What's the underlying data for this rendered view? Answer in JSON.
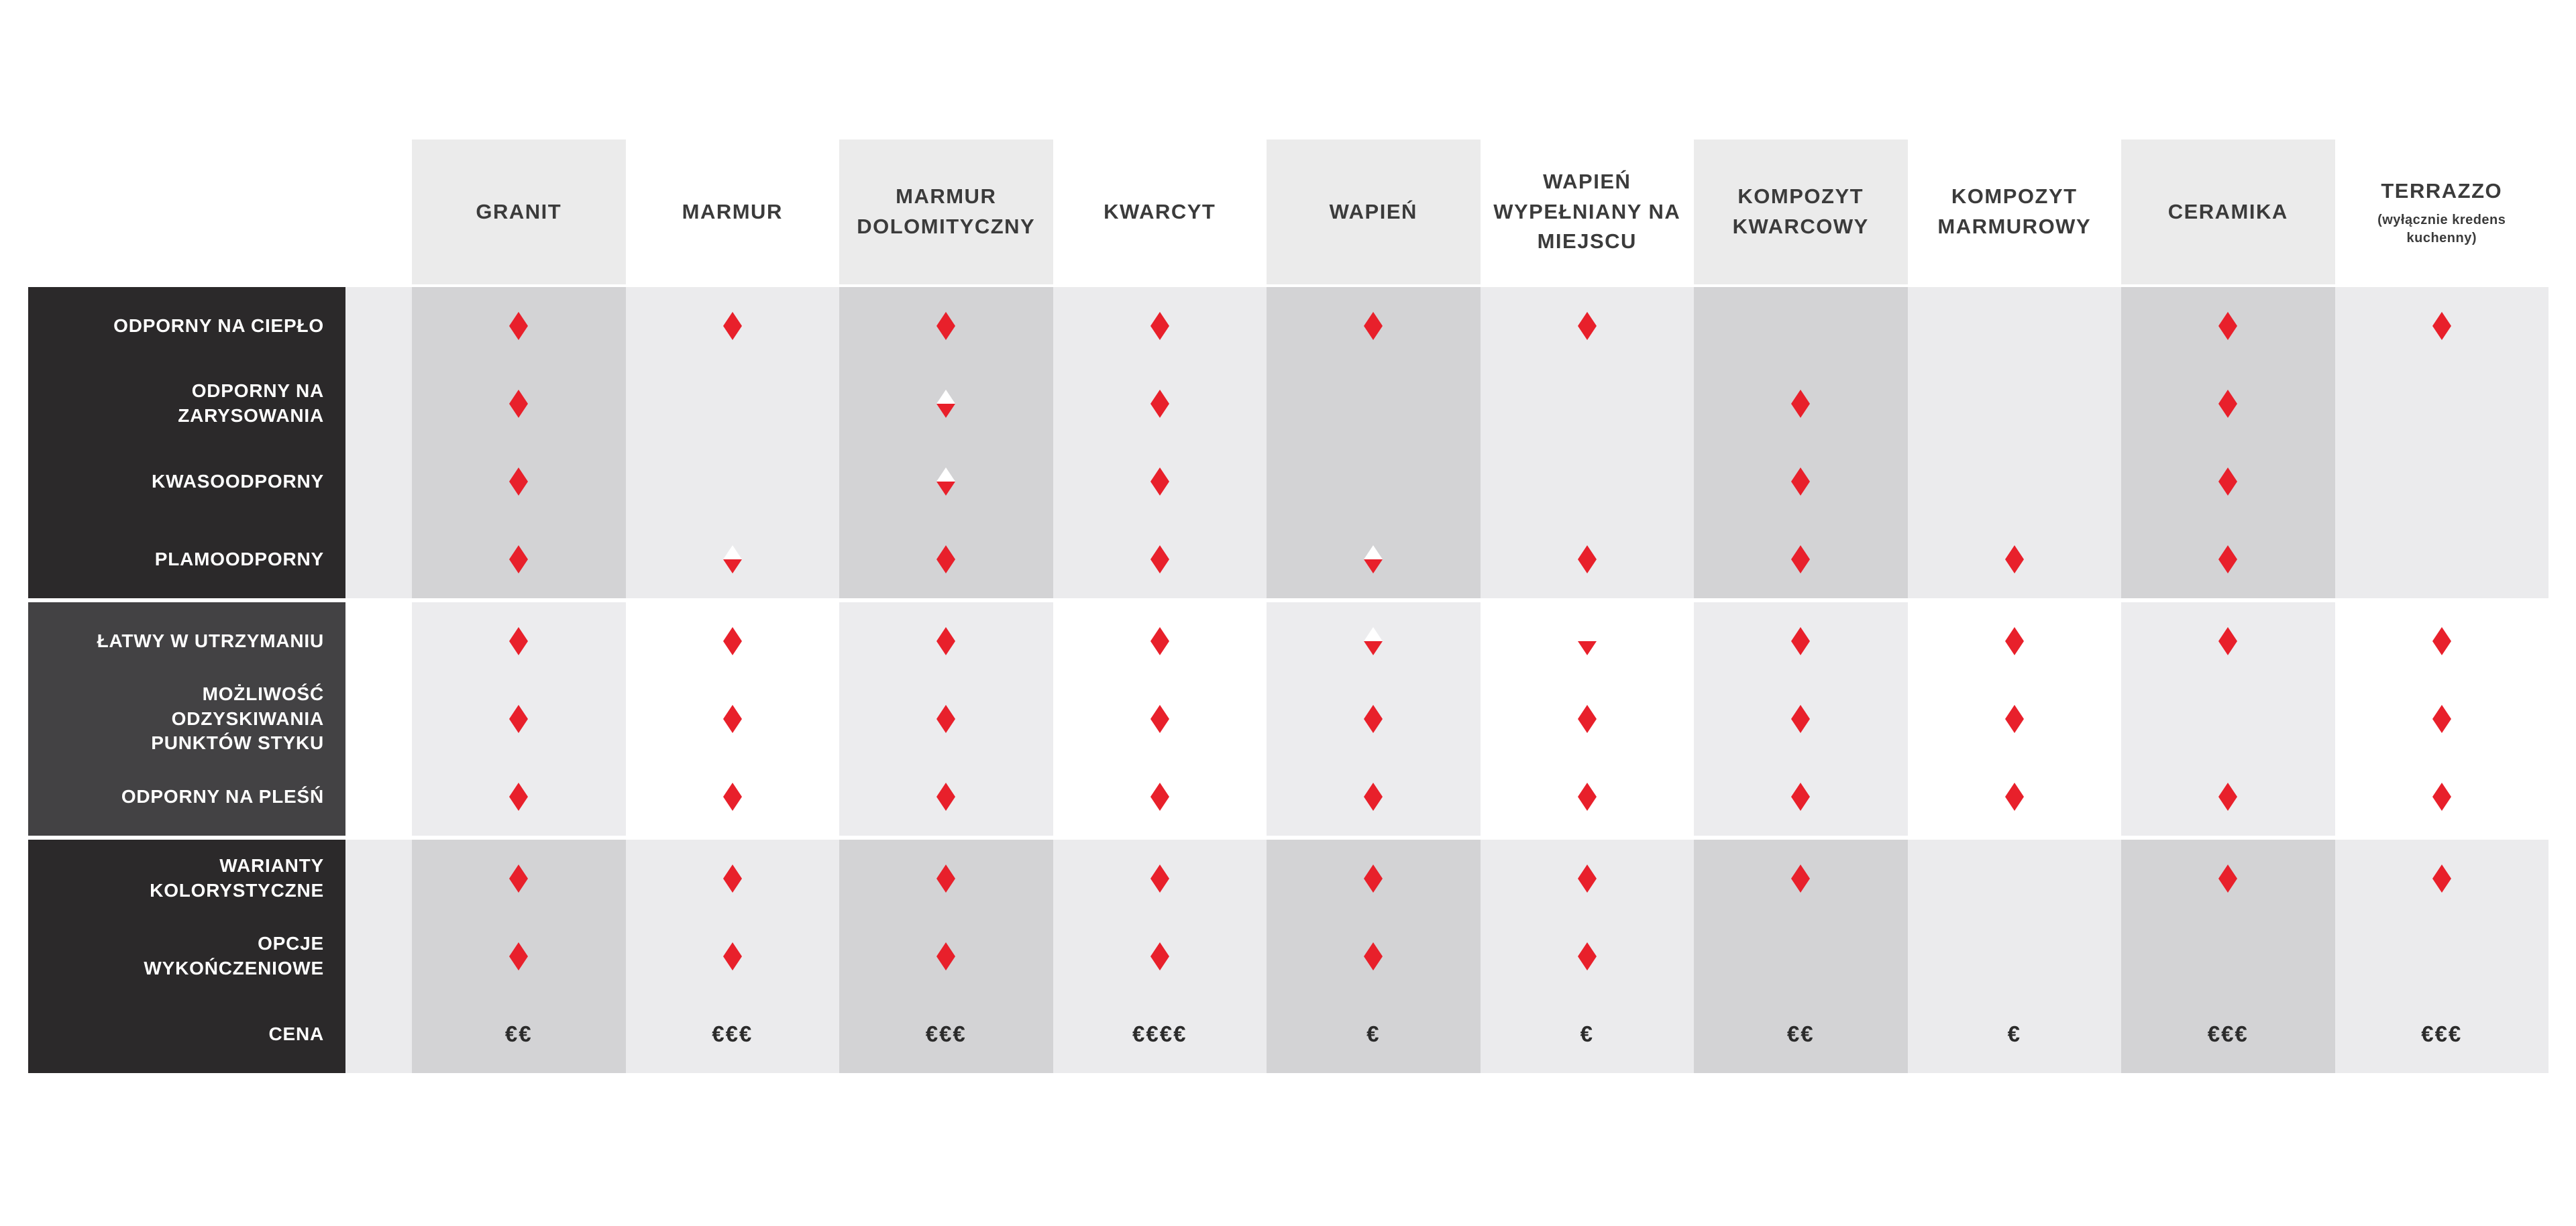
{
  "colors": {
    "red": "#e8202b",
    "dark_block": "#2b292a",
    "dark_block_mid": "#434244",
    "band_shaded": "#d3d3d5",
    "band_plain": "#ebebed",
    "band2_shaded": "#ececee",
    "band2_plain": "#ffffff",
    "header_box": "#ebebeb",
    "header_text": "#3b3b3b",
    "label_text": "#ffffff"
  },
  "chart_data": {
    "type": "table",
    "columns": [
      {
        "label": "GRANIT",
        "shaded": true
      },
      {
        "label": "MARMUR",
        "shaded": false
      },
      {
        "label": "MARMUR DOLOMITYCZNY",
        "shaded": true
      },
      {
        "label": "KWARCYT",
        "shaded": false
      },
      {
        "label": "WAPIEŃ",
        "shaded": true
      },
      {
        "label": "WAPIEŃ WYPEŁNIANY NA MIEJSCU",
        "shaded": false
      },
      {
        "label": "KOMPOZYT KWARCOWY",
        "shaded": true
      },
      {
        "label": "KOMPOZYT MARMUROWY",
        "shaded": false
      },
      {
        "label": "CERAMIKA",
        "shaded": true
      },
      {
        "label": "TERRAZZO",
        "sublabel": "(wyłącznie kredens kuchenny)",
        "shaded": false
      }
    ],
    "marker_values": [
      "full = red diamond",
      "half = diamond with white top half",
      "none = empty"
    ],
    "row_groups": [
      {
        "rows": [
          {
            "label_lines": [
              "ODPORNY NA CIEPŁO"
            ],
            "type": "markers",
            "cells": [
              "full",
              "full",
              "full",
              "full",
              "full",
              "full",
              "none",
              "none",
              "full",
              "full"
            ]
          },
          {
            "label_lines": [
              "ODPORNY NA",
              "ZARYSOWANIA"
            ],
            "type": "markers",
            "cells": [
              "full",
              "none",
              "half",
              "full",
              "none",
              "none",
              "full",
              "none",
              "full",
              "none"
            ]
          },
          {
            "label_lines": [
              "KWASOODPORNY"
            ],
            "type": "markers",
            "cells": [
              "full",
              "none",
              "half",
              "full",
              "none",
              "none",
              "full",
              "none",
              "full",
              "none"
            ]
          },
          {
            "label_lines": [
              "PLAMOODPORNY"
            ],
            "type": "markers",
            "cells": [
              "full",
              "half",
              "full",
              "full",
              "half",
              "full",
              "full",
              "full",
              "full",
              "none"
            ]
          }
        ]
      },
      {
        "rows": [
          {
            "label_lines": [
              "ŁATWY W UTRZYMANIU"
            ],
            "type": "markers",
            "cells": [
              "full",
              "full",
              "full",
              "full",
              "half",
              "half",
              "full",
              "full",
              "full",
              "full"
            ]
          },
          {
            "label_lines": [
              "MOŻLIWOŚĆ",
              "ODZYSKIWANIA",
              "PUNKTÓW STYKU"
            ],
            "type": "markers",
            "cells": [
              "full",
              "full",
              "full",
              "full",
              "full",
              "full",
              "full",
              "full",
              "none",
              "full"
            ]
          },
          {
            "label_lines": [
              "ODPORNY NA PLEŚŃ"
            ],
            "type": "markers",
            "cells": [
              "full",
              "full",
              "full",
              "full",
              "full",
              "full",
              "full",
              "full",
              "full",
              "full"
            ]
          }
        ]
      },
      {
        "rows": [
          {
            "label_lines": [
              "WARIANTY",
              "KOLORYSTYCZNE"
            ],
            "type": "markers",
            "cells": [
              "full",
              "full",
              "full",
              "full",
              "full",
              "full",
              "full",
              "none",
              "full",
              "full"
            ]
          },
          {
            "label_lines": [
              "OPCJE",
              "WYKOŃCZENIOWE"
            ],
            "type": "markers",
            "cells": [
              "full",
              "full",
              "full",
              "full",
              "full",
              "full",
              "none",
              "none",
              "none",
              "none"
            ]
          },
          {
            "label_lines": [
              "CENA"
            ],
            "type": "price",
            "cells": [
              "€€",
              "€€€",
              "€€€",
              "€€€€",
              "€",
              "€",
              "€€",
              "€",
              "€€€",
              "€€€"
            ]
          }
        ]
      }
    ]
  },
  "layout_note": "material comparison matrix"
}
